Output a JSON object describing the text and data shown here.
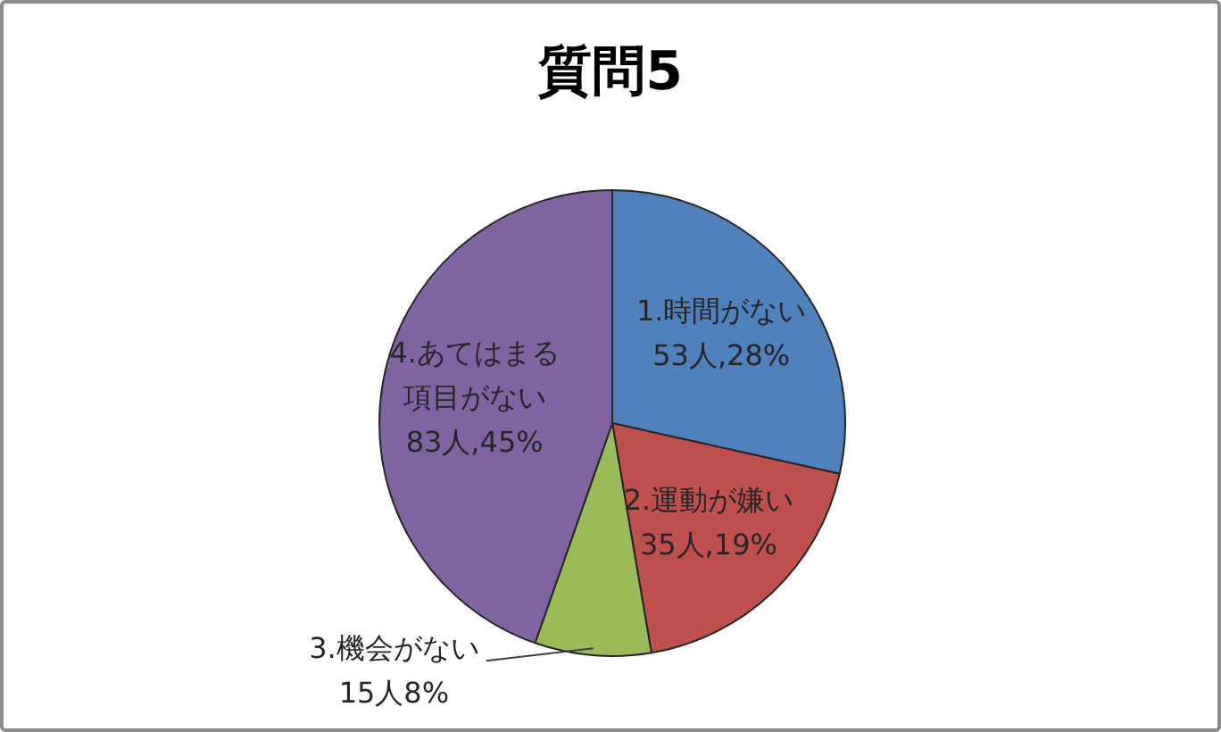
{
  "chart_data": {
    "type": "pie",
    "title": "質問5",
    "categories": [
      "1.時間がない",
      "2.運動が嫌い",
      "3.機会がない",
      "4.あてはまる項目がない"
    ],
    "values": [
      53,
      35,
      15,
      83
    ],
    "colors": [
      "#4f81bd",
      "#c0504d",
      "#9bbb59",
      "#8064a2"
    ],
    "value_labels": [
      "53人,28%",
      "35人,19%",
      "15人8%",
      "83人,45%"
    ],
    "legend": false
  }
}
